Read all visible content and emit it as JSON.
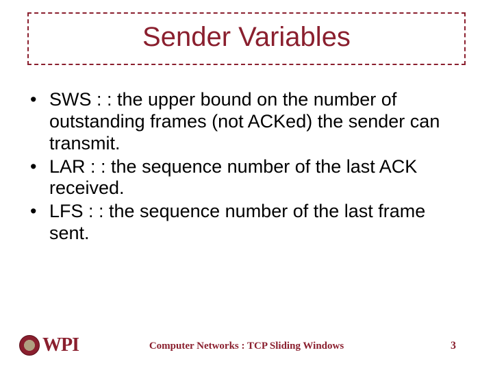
{
  "colors": {
    "accent": "#8a1f2e",
    "text": "#000000",
    "background": "#ffffff"
  },
  "title": "Sender Variables",
  "bullets": [
    "SWS : : the upper bound on the number of outstanding frames (not ACKed) the sender can transmit.",
    "LAR : : the sequence number of the last ACK received.",
    "LFS : : the sequence number of the last frame sent."
  ],
  "logo_text": "WPI",
  "footer_text": "Computer Networks : TCP Sliding Windows",
  "page_number": "3"
}
